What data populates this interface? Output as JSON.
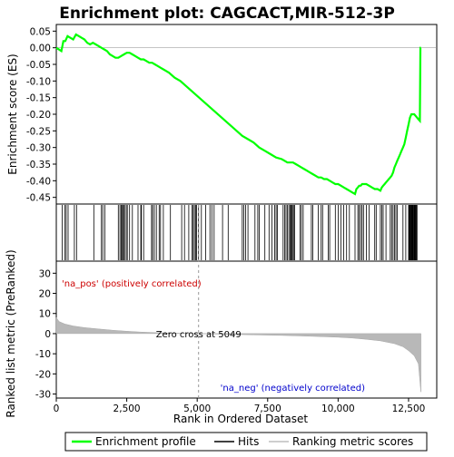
{
  "chart_data": {
    "type": "line",
    "title": "Enrichment plot: CAGCACT,MIR-512-3P",
    "top_panel": {
      "ylabel": "Enrichment score (ES)",
      "ylim": [
        -0.47,
        0.07
      ],
      "yticks": [
        0.05,
        0.0,
        -0.05,
        -0.1,
        -0.15,
        -0.2,
        -0.25,
        -0.3,
        -0.35,
        -0.4,
        -0.45
      ],
      "ytick_labels": [
        "0.05",
        "0.00",
        "-0.05",
        "-0.10",
        "-0.15",
        "-0.20",
        "-0.25",
        "-0.30",
        "-0.35",
        "-0.40",
        "-0.45"
      ],
      "series": [
        {
          "name": "Enrichment profile",
          "color": "#00ff00",
          "x": [
            0,
            180,
            250,
            320,
            400,
            500,
            600,
            700,
            800,
            900,
            1000,
            1100,
            1200,
            1300,
            1400,
            1500,
            1600,
            1700,
            1800,
            1900,
            2000,
            2100,
            2200,
            2300,
            2400,
            2500,
            2600,
            2700,
            2800,
            2900,
            3000,
            3100,
            3200,
            3300,
            3400,
            3500,
            3600,
            3700,
            3800,
            3900,
            4000,
            4200,
            4400,
            4600,
            4800,
            5000,
            5200,
            5400,
            5600,
            5800,
            6000,
            6200,
            6400,
            6600,
            6800,
            7000,
            7200,
            7400,
            7600,
            7800,
            8000,
            8100,
            8200,
            8300,
            8400,
            8500,
            8600,
            8700,
            8800,
            8900,
            9000,
            9100,
            9200,
            9300,
            9400,
            9500,
            9600,
            9700,
            9800,
            9900,
            10000,
            10100,
            10200,
            10300,
            10400,
            10500,
            10600,
            10650,
            10700,
            10750,
            10800,
            10850,
            10900,
            11000,
            11100,
            11200,
            11300,
            11400,
            11500,
            11550,
            11600,
            11650,
            11700,
            11750,
            11800,
            11850,
            11900,
            11950,
            12000,
            12050,
            12100,
            12150,
            12200,
            12250,
            12300,
            12350,
            12400,
            12450,
            12500,
            12550,
            12600,
            12700,
            12800,
            12850,
            12900,
            12920,
            12940
          ],
          "y": [
            0.0,
            -0.01,
            0.02,
            0.02,
            0.035,
            0.03,
            0.025,
            0.04,
            0.035,
            0.03,
            0.025,
            0.015,
            0.01,
            0.015,
            0.01,
            0.005,
            0.0,
            -0.005,
            -0.01,
            -0.02,
            -0.025,
            -0.03,
            -0.03,
            -0.025,
            -0.02,
            -0.015,
            -0.015,
            -0.02,
            -0.025,
            -0.03,
            -0.035,
            -0.035,
            -0.04,
            -0.045,
            -0.045,
            -0.05,
            -0.055,
            -0.06,
            -0.065,
            -0.07,
            -0.075,
            -0.09,
            -0.1,
            -0.115,
            -0.13,
            -0.145,
            -0.16,
            -0.175,
            -0.19,
            -0.205,
            -0.22,
            -0.235,
            -0.25,
            -0.265,
            -0.275,
            -0.285,
            -0.3,
            -0.31,
            -0.32,
            -0.33,
            -0.335,
            -0.34,
            -0.345,
            -0.345,
            -0.345,
            -0.35,
            -0.355,
            -0.36,
            -0.365,
            -0.37,
            -0.375,
            -0.38,
            -0.385,
            -0.39,
            -0.39,
            -0.395,
            -0.395,
            -0.4,
            -0.405,
            -0.41,
            -0.41,
            -0.415,
            -0.42,
            -0.425,
            -0.43,
            -0.435,
            -0.44,
            -0.425,
            -0.42,
            -0.415,
            -0.415,
            -0.41,
            -0.41,
            -0.41,
            -0.415,
            -0.42,
            -0.425,
            -0.425,
            -0.43,
            -0.42,
            -0.415,
            -0.41,
            -0.405,
            -0.4,
            -0.395,
            -0.39,
            -0.385,
            -0.375,
            -0.36,
            -0.35,
            -0.34,
            -0.33,
            -0.32,
            -0.31,
            -0.3,
            -0.29,
            -0.27,
            -0.25,
            -0.23,
            -0.21,
            -0.2,
            -0.2,
            -0.21,
            -0.215,
            -0.22,
            0.0,
            0.0
          ]
        }
      ]
    },
    "hits_panel": {
      "positions": [
        210,
        300,
        350,
        420,
        640,
        720,
        1330,
        1600,
        1650,
        1720,
        2200,
        2260,
        2300,
        2340,
        2360,
        2400,
        2420,
        2480,
        2520,
        2600,
        2700,
        2900,
        3000,
        3020,
        3100,
        3380,
        3420,
        3480,
        3550,
        3650,
        3700,
        3800,
        4050,
        4450,
        4550,
        4700,
        4820,
        4860,
        4900,
        4950,
        4980,
        5050,
        5150,
        5300,
        5450,
        5520,
        5600,
        5900,
        6100,
        6600,
        6650,
        6720,
        6800,
        7050,
        7150,
        7200,
        7400,
        7550,
        7650,
        7750,
        7800,
        7850,
        8050,
        8100,
        8150,
        8200,
        8250,
        8300,
        8330,
        8360,
        8380,
        8420,
        8460,
        8650,
        8700,
        8760,
        9050,
        9100,
        9300,
        9400,
        9450,
        9650,
        9700,
        9900,
        10000,
        10100,
        10200,
        10300,
        10400,
        10600,
        10700,
        10750,
        10800,
        10850,
        10900,
        11000,
        11100,
        11300,
        11350,
        11500,
        11550,
        11600,
        11700,
        11850,
        11900,
        11950,
        12000,
        12050,
        12100,
        12300,
        12400,
        12500,
        12520,
        12540,
        12560,
        12580,
        12600,
        12620,
        12640,
        12660,
        12680,
        12700,
        12720,
        12740,
        12760,
        12780,
        12800
      ]
    },
    "rank_panel": {
      "ylabel": "Ranked list metric (PreRanked)",
      "xlabel": "Rank in Ordered Dataset",
      "xlim": [
        0,
        13500
      ],
      "xticks": [
        0,
        2500,
        5000,
        7500,
        10000,
        12500
      ],
      "xtick_labels": [
        "0",
        "2,500",
        "5,000",
        "7,500",
        "10,000",
        "12,500"
      ],
      "ylim": [
        -32,
        36
      ],
      "yticks": [
        30,
        20,
        10,
        0,
        -10,
        -20,
        -30
      ],
      "ytick_labels": [
        "30",
        "20",
        "10",
        "0",
        "-10",
        "-20",
        "-30"
      ],
      "metric_x": [
        0,
        100,
        300,
        600,
        1000,
        1500,
        2000,
        2500,
        3000,
        3500,
        4000,
        4500,
        5000,
        5049,
        5500,
        6000,
        7000,
        8000,
        9000,
        10000,
        10500,
        11000,
        11500,
        12000,
        12300,
        12500,
        12700,
        12850,
        12930,
        12940
      ],
      "metric_y": [
        8.0,
        6.0,
        4.8,
        3.8,
        3.0,
        2.3,
        1.7,
        1.2,
        0.8,
        0.5,
        0.3,
        0.15,
        0.02,
        0.0,
        -0.15,
        -0.3,
        -0.6,
        -0.9,
        -1.3,
        -1.8,
        -2.2,
        -2.8,
        -3.6,
        -5.0,
        -6.5,
        -8.5,
        -11.0,
        -15.0,
        -28.0,
        -29.0
      ],
      "zero_cross_label": "Zero cross at 5049",
      "zero_cross": 5049,
      "pos_label": "'na_pos' (positively correlated)",
      "neg_label": "'na_neg' (negatively correlated)"
    },
    "legend": {
      "placement": "bottom",
      "entries": [
        {
          "label": "Enrichment profile",
          "color": "#00ff00"
        },
        {
          "label": "Hits",
          "color": "#000000"
        },
        {
          "label": "Ranking metric scores",
          "color": "#bebebe"
        }
      ]
    }
  }
}
